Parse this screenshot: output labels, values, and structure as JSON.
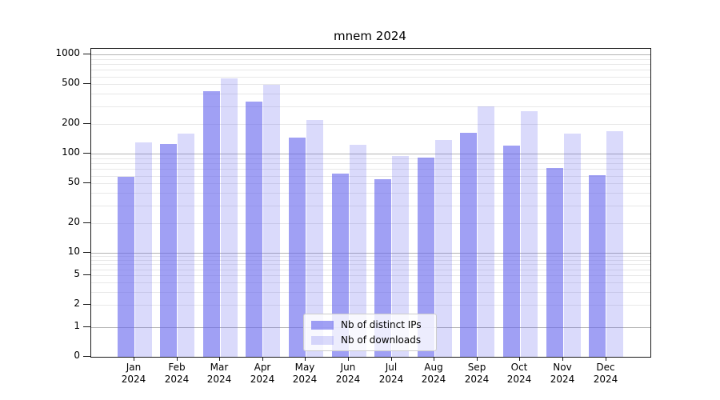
{
  "chart_data": {
    "type": "bar",
    "title": "mnem 2024",
    "x": {
      "months": [
        "Jan",
        "Feb",
        "Mar",
        "Apr",
        "May",
        "Jun",
        "Jul",
        "Aug",
        "Sep",
        "Oct",
        "Nov",
        "Dec"
      ],
      "year": "2024"
    },
    "series": [
      {
        "name": "Nb of distinct IPs",
        "color": "rgba(102,102,238,0.62)",
        "values": [
          58,
          125,
          425,
          335,
          146,
          63,
          55,
          91,
          162,
          120,
          72,
          61
        ]
      },
      {
        "name": "Nb of downloads",
        "color": "rgba(102,102,238,0.24)",
        "values": [
          130,
          160,
          570,
          495,
          220,
          123,
          95,
          137,
          300,
          270,
          160,
          168
        ]
      }
    ],
    "y_axis": {
      "scale": "log-with-zero-baseline",
      "ticks": [
        0,
        1,
        2,
        5,
        10,
        20,
        50,
        100,
        200,
        500,
        1000
      ],
      "ylim": [
        0,
        1200
      ]
    },
    "legend": {
      "position": "lower-center-inside"
    },
    "grid": {
      "major_color": "#b3b3b3",
      "minor_color": "#e8e8e8"
    }
  },
  "colors": {
    "background": "#ffffff",
    "spine": "#1a1a1a",
    "text": "#000000"
  }
}
